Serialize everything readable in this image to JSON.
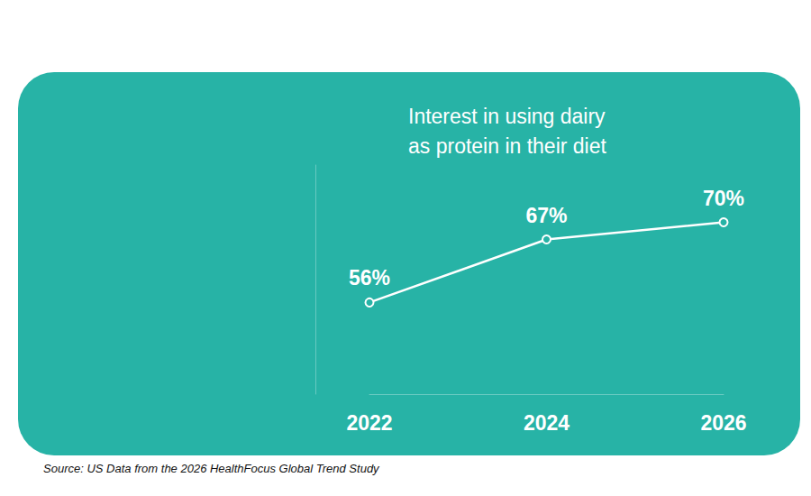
{
  "chart_data": {
    "type": "line",
    "title": "Interest in using dairy as protein in their diet",
    "source": "Source: US Data from the 2026 HealthFocus Global Trend Study",
    "categories": [
      "2022",
      "2024",
      "2026"
    ],
    "values": [
      56,
      67,
      70
    ],
    "value_labels": [
      "56%",
      "67%",
      "70%"
    ],
    "data_labels": true,
    "color": "#ffffff",
    "marker": "circle",
    "line_style": "solid",
    "ylim": [
      40,
      80
    ],
    "grid": false,
    "tick_labels": "x"
  }
}
